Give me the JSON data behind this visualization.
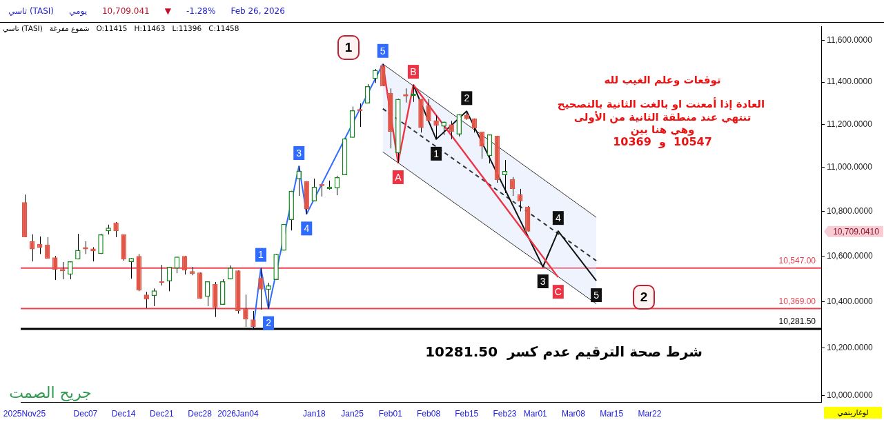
{
  "chart_data": {
    "type": "candlestick",
    "title": "تاسي (TASI)  يومي  10,709.041  ▼  -1.28%  Feb 26, 2026",
    "subtitle": "تاسي (TASI)  شموع مفرغة  O:11415  H:11463  L:11396  C:11458",
    "categories": [
      "2025Nov25",
      null,
      null,
      null,
      null,
      null,
      null,
      null,
      "Dec07",
      null,
      null,
      null,
      null,
      "Dec14",
      null,
      null,
      null,
      null,
      "Dec21",
      null,
      null,
      null,
      null,
      "Dec28",
      null,
      null,
      null,
      null,
      "2026Jan04",
      null,
      null,
      null,
      null,
      null,
      null,
      null,
      null,
      null,
      "Jan18",
      null,
      null,
      null,
      null,
      "Jan25",
      null,
      null,
      null,
      null,
      "Feb01",
      null,
      null,
      null,
      null,
      "Feb08",
      null,
      null,
      null,
      null,
      "Feb15",
      null,
      null,
      null,
      null,
      "Feb23",
      null,
      null,
      null,
      "Mar01",
      null,
      null,
      null,
      null,
      "Mar08",
      null,
      null,
      null,
      null,
      "Mar15",
      null,
      null,
      null,
      null,
      "Mar22",
      null,
      null,
      null,
      null,
      null,
      null,
      null,
      null,
      null,
      null,
      null,
      null,
      null,
      null,
      null,
      null,
      null,
      null,
      null,
      null,
      null,
      null
    ],
    "ohlc": [
      [
        10841,
        10876,
        10684,
        10684
      ],
      [
        10666,
        10696,
        10576,
        10630
      ],
      [
        10654,
        10687,
        10609,
        10636
      ],
      [
        10651,
        10684,
        10588,
        10588
      ],
      [
        10594,
        10600,
        10494,
        10539
      ],
      [
        10542,
        10573,
        10497,
        10533
      ],
      [
        10518,
        10576,
        10497,
        10576
      ],
      [
        10585,
        10699,
        10585,
        10627
      ],
      [
        10639,
        10666,
        10609,
        10630
      ],
      [
        10633,
        10639,
        10576,
        10621
      ],
      [
        10609,
        10699,
        10609,
        10696
      ],
      [
        10711,
        10740,
        10696,
        10726
      ],
      [
        10749,
        10752,
        10684,
        10711
      ],
      [
        10696,
        10696,
        10579,
        10585
      ],
      [
        10573,
        10591,
        10500,
        10591
      ],
      [
        10600,
        10609,
        10445,
        10448
      ],
      [
        10430,
        10442,
        10371,
        10409
      ],
      [
        10424,
        10457,
        10380,
        10448
      ],
      [
        10488,
        10561,
        10470,
        10482
      ],
      [
        10488,
        10552,
        10445,
        10552
      ],
      [
        10545,
        10597,
        10524,
        10597
      ],
      [
        10600,
        10600,
        10518,
        10536
      ],
      [
        10533,
        10552,
        10515,
        10521
      ],
      [
        10527,
        10527,
        10412,
        10412
      ],
      [
        10421,
        10488,
        10380,
        10488
      ],
      [
        10476,
        10485,
        10333,
        10374
      ],
      [
        10386,
        10497,
        10386,
        10488
      ],
      [
        10497,
        10558,
        10497,
        10548
      ],
      [
        10536,
        10536,
        10348,
        10359
      ],
      [
        10368,
        10430,
        10290,
        10322
      ],
      [
        10322,
        10359,
        10281.5,
        10290
      ],
      [
        10503,
        10547,
        10365,
        10453
      ],
      [
        10451,
        10482,
        10369,
        10470
      ],
      [
        10494,
        10609,
        10494,
        10609
      ],
      [
        10624,
        10743,
        10624,
        10743
      ],
      [
        10761,
        10893,
        10714,
        10893
      ],
      [
        10947,
        11006,
        10870,
        10985
      ],
      [
        10937,
        10937,
        10788,
        10809
      ],
      [
        10845,
        10949,
        10845,
        10911
      ],
      [
        10924,
        10924,
        10867,
        10915
      ],
      [
        10902,
        10940,
        10899,
        10912
      ],
      [
        10905,
        10962,
        10873,
        10955
      ],
      [
        10965,
        11135,
        10965,
        11135
      ],
      [
        11138,
        11284,
        11138,
        11266
      ],
      [
        11272,
        11299,
        11188,
        11263
      ],
      [
        11299,
        11390,
        11299,
        11381
      ],
      [
        11415,
        11463,
        11396,
        11458
      ],
      [
        11480,
        11487,
        11381,
        11381
      ],
      [
        11348,
        11370,
        11088,
        11166
      ],
      [
        11066,
        11320,
        11022,
        11320
      ],
      [
        11342,
        11370,
        11303,
        11332
      ],
      [
        11335,
        11387,
        11306,
        11345
      ],
      [
        11320,
        11320,
        11162,
        11184
      ],
      [
        11290,
        11320,
        11216,
        11216
      ],
      [
        11219,
        11242,
        11134,
        11194
      ],
      [
        11190,
        11213,
        11150,
        11213
      ],
      [
        11200,
        11216,
        11131,
        11166
      ],
      [
        11153,
        11248,
        11144,
        11248
      ],
      [
        11245,
        11262,
        11222,
        11225
      ],
      [
        11228,
        11228,
        11162,
        11181
      ],
      [
        11166,
        11166,
        11041,
        11097
      ],
      [
        11053,
        11153,
        11019,
        11153
      ],
      [
        11147,
        11147,
        10930,
        10943
      ],
      [
        10965,
        11034,
        10883,
        10984
      ],
      [
        10946,
        10956,
        10870,
        10902
      ],
      [
        10877,
        10902,
        10800,
        10845
      ],
      [
        10821,
        10824,
        10709.04,
        10709.04
      ],
      null,
      null,
      null,
      null,
      null,
      null,
      null,
      null,
      null,
      null,
      null,
      null,
      null,
      null,
      null,
      null,
      null,
      null,
      null,
      null,
      null,
      null,
      null,
      null,
      null,
      null,
      null,
      null,
      null,
      null,
      null,
      null,
      null,
      null,
      null,
      null,
      null,
      null
    ],
    "colors": [
      "#e05545",
      "#e05545",
      "#e05545",
      "#e05545",
      "#e05545",
      "#e05545",
      "#11891a",
      "#11891a",
      "#e05545",
      "#e05545",
      "#11891a",
      "#11891a",
      "#e05545",
      "#e05545",
      "#11891a",
      "#e05545",
      "#e05545",
      "#11891a",
      "#e05545",
      "#11891a",
      "#11891a",
      "#e05545",
      "#e05545",
      "#e05545",
      "#11891a",
      "#e05545",
      "#11891a",
      "#11891a",
      "#e05545",
      "#e05545",
      "#e05545",
      "#e05545",
      "#11891a",
      "#11891a",
      "#11891a",
      "#11891a",
      "#11891a",
      "#e05545",
      "#11891a",
      "#e05545",
      "#11891a",
      "#11891a",
      "#11891a",
      "#11891a",
      "#e05545",
      "#11891a",
      "#11891a",
      "#e05545",
      "#e05545",
      "#11891a",
      "#e05545",
      "#11891a",
      "#e05545",
      "#e05545",
      "#e05545",
      "#11891a",
      "#e05545",
      "#11891a",
      "#e05545",
      "#e05545",
      "#e05545",
      "#11891a",
      "#e05545",
      "#11891a",
      "#e05545",
      "#e05545",
      "#e05545",
      null,
      null,
      null,
      null,
      null,
      null,
      null,
      null,
      null,
      null,
      null,
      null,
      null,
      null,
      null,
      null,
      null,
      null,
      null,
      null,
      null,
      null,
      null,
      null,
      null,
      null,
      null,
      null,
      null,
      null,
      null,
      null,
      null,
      null,
      null,
      null,
      null,
      null
    ],
    "series": [
      {
        "type": "line",
        "color": "#2f6bff",
        "values": [
          null,
          null,
          null,
          null,
          null,
          null,
          null,
          null,
          null,
          null,
          null,
          null,
          null,
          null,
          null,
          null,
          null,
          null,
          null,
          null,
          null,
          null,
          null,
          null,
          null,
          null,
          null,
          null,
          null,
          null,
          10281.5,
          10547,
          10369,
          null,
          null,
          null,
          11006,
          10788,
          null,
          null,
          null,
          null,
          null,
          null,
          null,
          null,
          null,
          11487,
          null,
          null,
          null,
          null,
          null,
          null,
          null,
          null,
          null,
          null,
          null,
          null,
          null,
          null,
          null,
          null,
          null,
          null,
          null,
          null,
          null,
          null,
          null,
          null,
          null,
          null,
          null,
          null,
          null,
          null,
          null,
          null,
          null,
          null,
          null,
          null,
          null,
          null,
          null,
          null,
          null,
          null,
          null,
          null,
          null,
          null,
          null,
          null,
          null,
          null,
          null,
          null,
          null,
          null,
          null,
          null,
          null
        ]
      },
      {
        "type": "line",
        "color": "#ee3344",
        "values": [
          null,
          null,
          null,
          null,
          null,
          null,
          null,
          null,
          null,
          null,
          null,
          null,
          null,
          null,
          null,
          null,
          null,
          null,
          null,
          null,
          null,
          null,
          null,
          null,
          null,
          null,
          null,
          null,
          null,
          null,
          null,
          null,
          null,
          null,
          null,
          null,
          null,
          null,
          null,
          null,
          null,
          null,
          null,
          null,
          null,
          null,
          null,
          11487,
          null,
          11022,
          null,
          11387,
          null,
          null,
          null,
          null,
          null,
          null,
          null,
          null,
          null,
          null,
          null,
          null,
          null,
          null,
          null,
          null,
          null,
          null,
          10506,
          null,
          null,
          null,
          null,
          null,
          null,
          null,
          null,
          null,
          null,
          null,
          null,
          null,
          null,
          null,
          null,
          null,
          null,
          null,
          null,
          null,
          null,
          null,
          null,
          null,
          null,
          null,
          null,
          null,
          null,
          null,
          null,
          null,
          null
        ]
      },
      {
        "type": "line",
        "color": "#111111",
        "values": [
          null,
          null,
          null,
          null,
          null,
          null,
          null,
          null,
          null,
          null,
          null,
          null,
          null,
          null,
          null,
          null,
          null,
          null,
          null,
          null,
          null,
          null,
          null,
          null,
          null,
          null,
          null,
          null,
          null,
          null,
          null,
          null,
          null,
          null,
          null,
          null,
          null,
          null,
          null,
          null,
          null,
          null,
          null,
          null,
          null,
          null,
          null,
          null,
          null,
          null,
          null,
          11387,
          null,
          null,
          11131,
          null,
          null,
          null,
          11262,
          null,
          null,
          null,
          null,
          null,
          null,
          null,
          null,
          null,
          10552,
          null,
          10711,
          null,
          null,
          null,
          null,
          10491,
          null,
          null,
          null,
          null,
          null,
          null,
          null,
          null,
          null,
          null,
          null,
          null,
          null,
          null,
          null,
          null,
          null,
          null,
          null,
          null,
          null,
          null,
          null,
          null,
          null,
          null,
          null,
          null,
          null
        ]
      },
      {
        "type": "line",
        "color": "#333333",
        "line_style": "dashed",
        "values": [
          null,
          null,
          null,
          null,
          null,
          null,
          null,
          null,
          null,
          null,
          null,
          null,
          null,
          null,
          null,
          null,
          null,
          null,
          null,
          null,
          null,
          null,
          null,
          null,
          null,
          null,
          null,
          null,
          null,
          null,
          null,
          null,
          null,
          null,
          null,
          null,
          null,
          null,
          null,
          null,
          null,
          null,
          null,
          null,
          null,
          null,
          null,
          11274,
          null,
          null,
          null,
          null,
          null,
          null,
          null,
          null,
          null,
          null,
          null,
          null,
          null,
          null,
          null,
          null,
          null,
          null,
          null,
          null,
          null,
          null,
          null,
          null,
          null,
          null,
          null,
          10579,
          null,
          null,
          null,
          null,
          null,
          null,
          null,
          null,
          null,
          null,
          null,
          null,
          null,
          null,
          null,
          null,
          null,
          null,
          null,
          null,
          null,
          null,
          null,
          null,
          null,
          null,
          null,
          null,
          null
        ],
        "lower": [
          null,
          null,
          null,
          null,
          null,
          null,
          null,
          null,
          null,
          null,
          null,
          null,
          null,
          null,
          null,
          null,
          null,
          null,
          null,
          null,
          null,
          null,
          null,
          null,
          null,
          null,
          null,
          null,
          null,
          null,
          null,
          null,
          null,
          null,
          null,
          null,
          null,
          null,
          null,
          null,
          null,
          null,
          null,
          null,
          null,
          null,
          null,
          11072,
          null,
          null,
          null,
          null,
          null,
          null,
          null,
          null,
          null,
          null,
          null,
          null,
          null,
          null,
          null,
          null,
          null,
          null,
          null,
          null,
          null,
          null,
          null,
          null,
          null,
          null,
          null,
          10390,
          null,
          null,
          null,
          null,
          null,
          null,
          null,
          null,
          null,
          null,
          null,
          null,
          null,
          null,
          null,
          null,
          null,
          null,
          null,
          null,
          null,
          null,
          null,
          null,
          null,
          null,
          null,
          null,
          null
        ],
        "upper": [
          null,
          null,
          null,
          null,
          null,
          null,
          null,
          null,
          null,
          null,
          null,
          null,
          null,
          null,
          null,
          null,
          null,
          null,
          null,
          null,
          null,
          null,
          null,
          null,
          null,
          null,
          null,
          null,
          null,
          null,
          null,
          null,
          null,
          null,
          null,
          null,
          null,
          null,
          null,
          null,
          null,
          null,
          null,
          null,
          null,
          null,
          null,
          11487,
          null,
          null,
          null,
          null,
          null,
          null,
          null,
          null,
          null,
          null,
          null,
          null,
          null,
          null,
          null,
          null,
          null,
          null,
          null,
          null,
          null,
          null,
          null,
          null,
          null,
          null,
          null,
          10773,
          null,
          null,
          null,
          null,
          null,
          null,
          null,
          null,
          null,
          null,
          null,
          null,
          null,
          null,
          null,
          null,
          null,
          null,
          null,
          null,
          null,
          null,
          null,
          null,
          null,
          null,
          null,
          null,
          null
        ]
      }
    ],
    "ylim": [
      9970,
      11670
    ],
    "log": true,
    "yticks": [
      {
        "value": 10000,
        "label": "10,000.0000"
      },
      {
        "value": 10200,
        "label": "10,200.0000"
      },
      {
        "value": 10400,
        "label": "10,400.0000"
      },
      {
        "value": 10600,
        "label": "10,600.0000"
      },
      {
        "value": 10800,
        "label": "10,800.0000"
      },
      {
        "value": 11000,
        "label": "11,000.0000"
      },
      {
        "value": 11200,
        "label": "11,200.0000"
      },
      {
        "value": 11400,
        "label": "11,400.0000"
      },
      {
        "value": 11600,
        "label": "11,600.0000"
      }
    ],
    "ref_lines": [
      {
        "axis": "y",
        "value": 10547,
        "label": "10,547.00",
        "color": "#e8404f"
      },
      {
        "axis": "y",
        "value": 10369,
        "label": "10,369.00",
        "color": "#e8404f"
      },
      {
        "axis": "y",
        "value": 10281.5,
        "label": "10,281.50",
        "color": "#000000"
      }
    ],
    "annotations": [
      "1",
      "2",
      "توقعات وعلم الغيب لله",
      "العادة إذا أمعنت او بالغت الثانية بالتصحيح",
      "تنتهي عند منطقة الثانية من الأولى",
      "وهي هنا بين",
      "10547  و  10369",
      "شرط صحة الترقيم عدم كسر  10281.50",
      "جريح الصمت",
      "10,709.0410",
      "لوغاريتمي",
      {
        "text": "1",
        "y": 10547
      },
      {
        "text": "2",
        "y": 10369
      },
      {
        "text": "3",
        "y": 11006
      },
      "4",
      {
        "text": "5",
        "y": 11487
      },
      {
        "text": "A",
        "y": 11022
      },
      {
        "text": "B",
        "y": 11387
      },
      {
        "text": "C",
        "y": 10506
      },
      {
        "text": "1",
        "y": 11131
      },
      {
        "text": "2",
        "y": 11262
      },
      {
        "text": "3",
        "y": 10552
      },
      "4",
      {
        "text": "5",
        "y": 10491
      }
    ],
    "legend": false
  }
}
